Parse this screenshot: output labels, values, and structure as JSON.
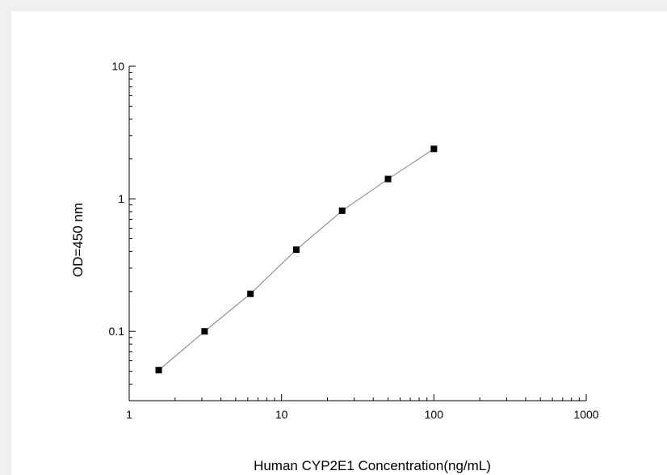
{
  "chart_data": {
    "type": "scatter",
    "title": "",
    "xlabel": "Human CYP2E1 Concentration(ng/mL)",
    "ylabel": "OD=450 nm",
    "xscale": "log",
    "yscale": "log",
    "xlim": [
      1,
      1000
    ],
    "ylim": [
      0.03,
      10
    ],
    "x_ticks": [
      {
        "value": 1,
        "label": "1"
      },
      {
        "value": 10,
        "label": "10"
      },
      {
        "value": 100,
        "label": "100"
      },
      {
        "value": 1000,
        "label": "1000"
      }
    ],
    "y_ticks": [
      {
        "value": 0.1,
        "label": "0.1"
      },
      {
        "value": 1,
        "label": "1"
      },
      {
        "value": 10,
        "label": "10"
      }
    ],
    "grid": false,
    "legend": "none",
    "series": [
      {
        "marker": "square",
        "line": "connected",
        "color": "#000000",
        "line_color": "#808080",
        "points": [
          {
            "x": 1.5625,
            "y": 0.051
          },
          {
            "x": 3.125,
            "y": 0.1
          },
          {
            "x": 6.25,
            "y": 0.192
          },
          {
            "x": 12.5,
            "y": 0.413
          },
          {
            "x": 25,
            "y": 0.813
          },
          {
            "x": 50,
            "y": 1.41
          },
          {
            "x": 100,
            "y": 2.38
          }
        ]
      }
    ]
  }
}
